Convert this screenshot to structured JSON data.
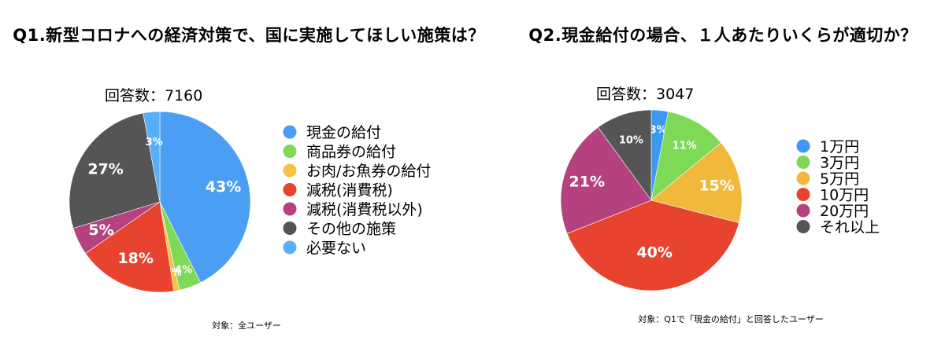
{
  "chart_data": [
    {
      "type": "pie",
      "title": "Q1.新型コロナへの経済対策で、国に実施してほしい施策は？",
      "response_count": "回答数：7160",
      "footnote": "対象：全ユーザー",
      "slices": [
        {
          "label": "現金の給付",
          "value": 43,
          "display": "43%",
          "color": "#4a9ff5"
        },
        {
          "label": "商品券の給付",
          "value": 4,
          "display": "4%",
          "color": "#7ed957"
        },
        {
          "label": "お肉/お魚券の給付",
          "value": 1,
          "display": "1%",
          "color": "#f5c242"
        },
        {
          "label": "減税(消費税)",
          "value": 18,
          "display": "18%",
          "color": "#e8432e"
        },
        {
          "label": "減税(消費税以外)",
          "value": 5,
          "display": "5%",
          "color": "#b5427e"
        },
        {
          "label": "その他の施策",
          "value": 27,
          "display": "27%",
          "color": "#555555"
        },
        {
          "label": "必要ない",
          "value": 3,
          "display": "3%",
          "color": "#5aaef5"
        }
      ]
    },
    {
      "type": "pie",
      "title": "Q2.現金給付の場合、１人あたりいくらが適切か？",
      "response_count": "回答数：3047",
      "footnote": "対象：Q1で「現金の給付」と回答したユーザー",
      "slices": [
        {
          "label": "1万円",
          "value": 3,
          "display": "3%",
          "color": "#3d99f0"
        },
        {
          "label": "3万円",
          "value": 11,
          "display": "11%",
          "color": "#7ed957"
        },
        {
          "label": "5万円",
          "value": 15,
          "display": "15%",
          "color": "#f0b93c"
        },
        {
          "label": "10万円",
          "value": 40,
          "display": "40%",
          "color": "#e8432e"
        },
        {
          "label": "20万円",
          "value": 21,
          "display": "21%",
          "color": "#b5427e"
        },
        {
          "label": "それ以上",
          "value": 10,
          "display": "10%",
          "color": "#555555"
        }
      ]
    }
  ]
}
